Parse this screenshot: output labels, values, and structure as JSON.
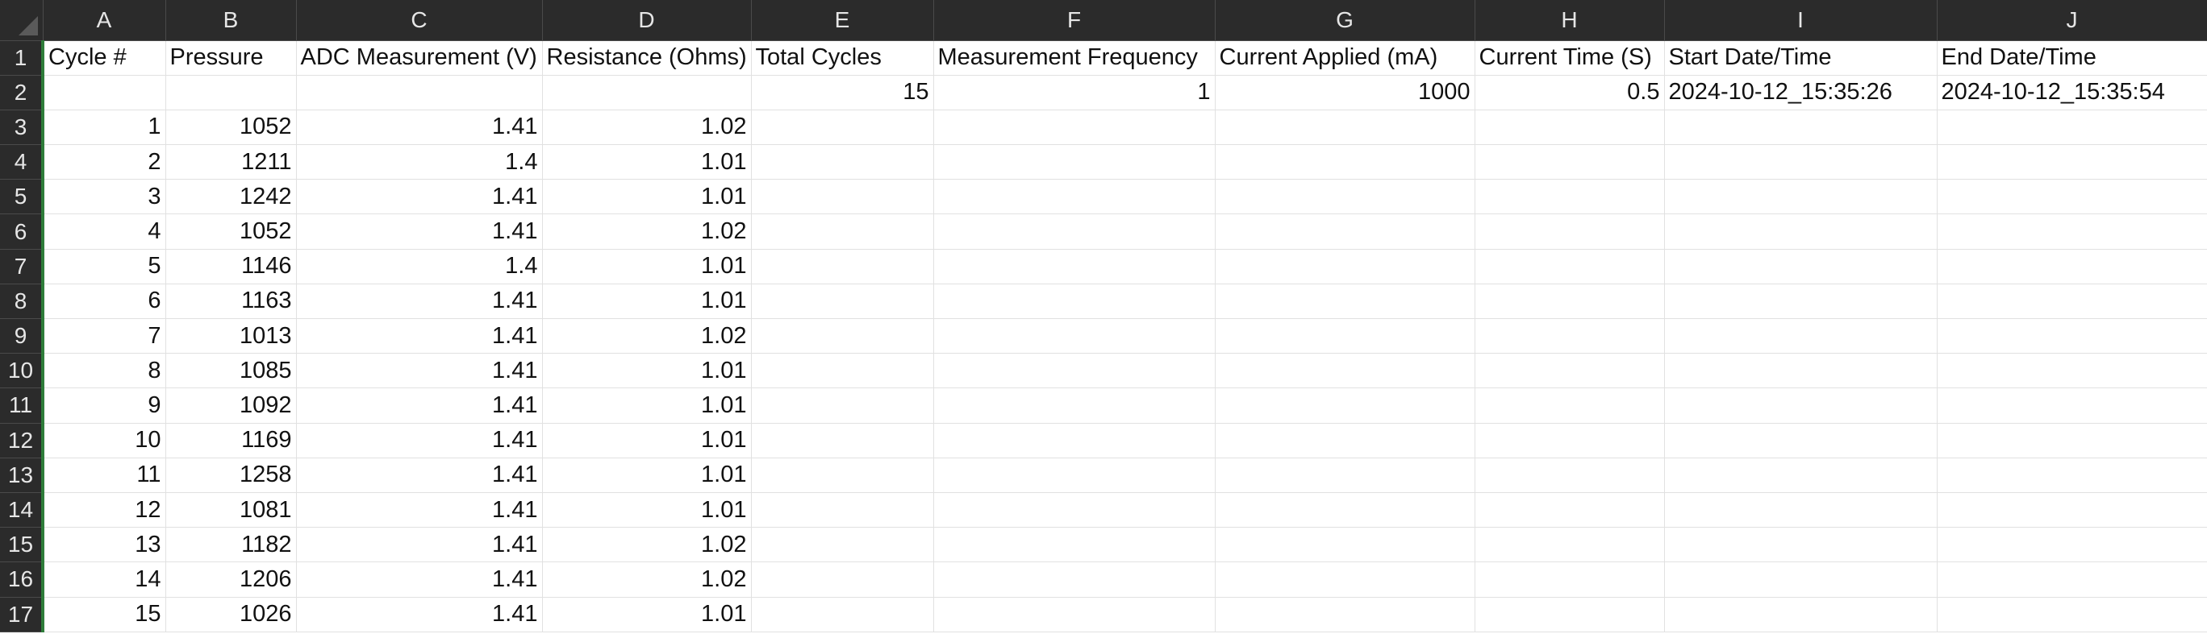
{
  "columns": [
    "A",
    "B",
    "C",
    "D",
    "E",
    "F",
    "G",
    "H",
    "I",
    "J"
  ],
  "row_numbers": [
    "1",
    "2",
    "3",
    "4",
    "5",
    "6",
    "7",
    "8",
    "9",
    "10",
    "11",
    "12",
    "13",
    "14",
    "15",
    "16",
    "17"
  ],
  "headers": {
    "A": "Cycle #",
    "B": "Pressure",
    "C": "ADC Measurement (V)",
    "D": "Resistance (Ohms)",
    "E": "Total Cycles",
    "F": "Measurement Frequency",
    "G": "Current Applied (mA)",
    "H": "Current Time (S)",
    "I": "Start Date/Time",
    "J": "End Date/Time"
  },
  "settings": {
    "total_cycles": "15",
    "measurement_frequency": "1",
    "current_applied": "1000",
    "current_time": "0.5",
    "start_datetime": "2024-10-12_15:35:26",
    "end_datetime": "2024-10-12_15:35:54"
  },
  "rows": [
    {
      "cycle": "1",
      "pressure": "1052",
      "adc": "1.41",
      "resistance": "1.02"
    },
    {
      "cycle": "2",
      "pressure": "1211",
      "adc": "1.4",
      "resistance": "1.01"
    },
    {
      "cycle": "3",
      "pressure": "1242",
      "adc": "1.41",
      "resistance": "1.01"
    },
    {
      "cycle": "4",
      "pressure": "1052",
      "adc": "1.41",
      "resistance": "1.02"
    },
    {
      "cycle": "5",
      "pressure": "1146",
      "adc": "1.4",
      "resistance": "1.01"
    },
    {
      "cycle": "6",
      "pressure": "1163",
      "adc": "1.41",
      "resistance": "1.01"
    },
    {
      "cycle": "7",
      "pressure": "1013",
      "adc": "1.41",
      "resistance": "1.02"
    },
    {
      "cycle": "8",
      "pressure": "1085",
      "adc": "1.41",
      "resistance": "1.01"
    },
    {
      "cycle": "9",
      "pressure": "1092",
      "adc": "1.41",
      "resistance": "1.01"
    },
    {
      "cycle": "10",
      "pressure": "1169",
      "adc": "1.41",
      "resistance": "1.01"
    },
    {
      "cycle": "11",
      "pressure": "1258",
      "adc": "1.41",
      "resistance": "1.01"
    },
    {
      "cycle": "12",
      "pressure": "1081",
      "adc": "1.41",
      "resistance": "1.01"
    },
    {
      "cycle": "13",
      "pressure": "1182",
      "adc": "1.41",
      "resistance": "1.02"
    },
    {
      "cycle": "14",
      "pressure": "1206",
      "adc": "1.41",
      "resistance": "1.02"
    },
    {
      "cycle": "15",
      "pressure": "1026",
      "adc": "1.41",
      "resistance": "1.01"
    }
  ]
}
